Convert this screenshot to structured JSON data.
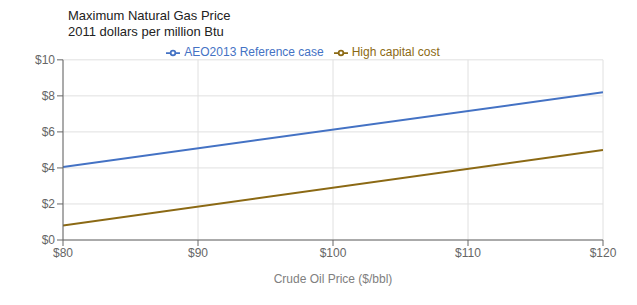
{
  "chart_data": {
    "type": "line",
    "title": "Maximum Natural Gas Price",
    "subtitle": "2011 dollars per million Btu",
    "xlabel": "Crude Oil Price ($/bbl)",
    "x": [
      80,
      120
    ],
    "series": [
      {
        "name": "AEO2013 Reference case",
        "color": "#4472C4",
        "values": [
          4.05,
          8.2
        ]
      },
      {
        "name": "High capital cost",
        "color": "#8B6914",
        "values": [
          0.8,
          5.0
        ]
      }
    ],
    "xlim": [
      80,
      120
    ],
    "ylim": [
      0,
      10
    ],
    "xticks": [
      {
        "value": 80,
        "label": "$80"
      },
      {
        "value": 90,
        "label": "$90"
      },
      {
        "value": 100,
        "label": "$100"
      },
      {
        "value": 110,
        "label": "$110"
      },
      {
        "value": 120,
        "label": "$120"
      }
    ],
    "yticks": [
      {
        "value": 0,
        "label": "$0"
      },
      {
        "value": 2,
        "label": "$2"
      },
      {
        "value": 4,
        "label": "$4"
      },
      {
        "value": 6,
        "label": "$6"
      },
      {
        "value": 8,
        "label": "$8"
      },
      {
        "value": 10,
        "label": "$10"
      }
    ],
    "grid": true,
    "legend": "top"
  }
}
